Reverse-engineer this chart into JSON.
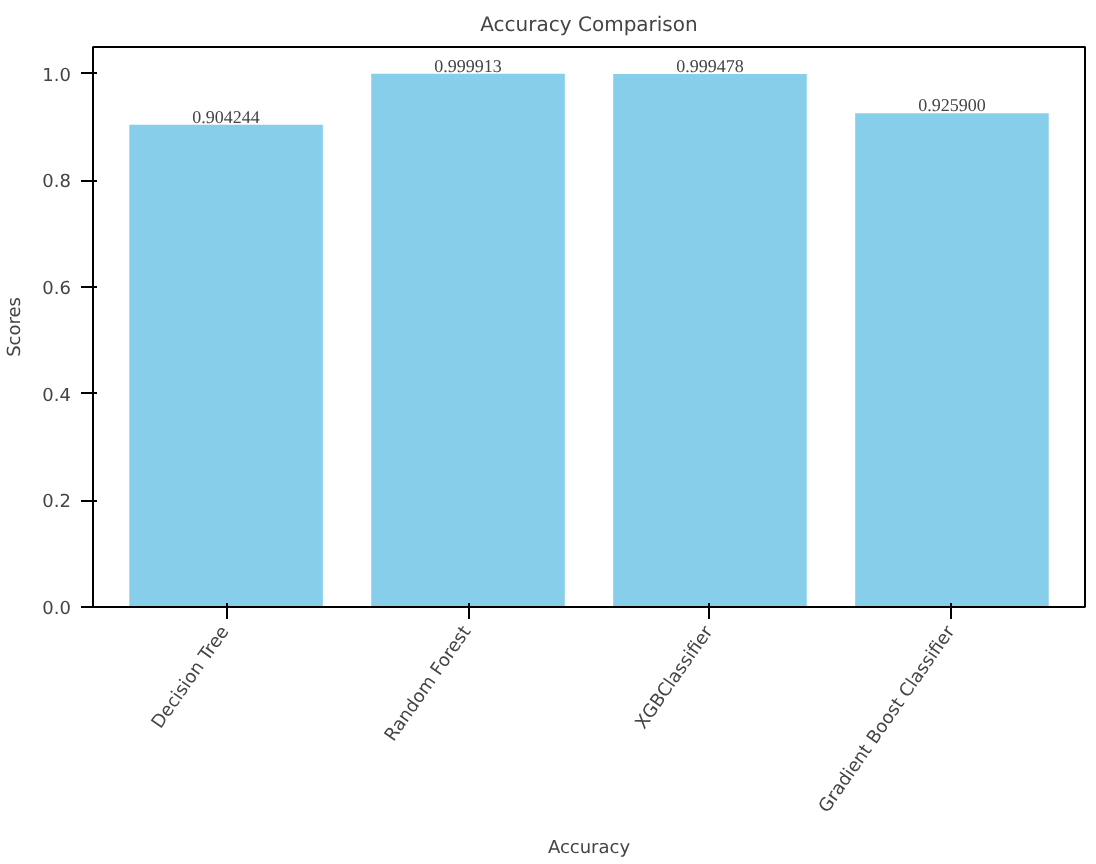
{
  "chart_data": {
    "type": "bar",
    "title": "Accuracy Comparison",
    "xlabel": "Accuracy",
    "ylabel": "Scores",
    "categories": [
      "Decision Tree",
      "Random Forest",
      "XGBClassifier",
      "Gradient Boost Classifier"
    ],
    "values": [
      0.904244,
      0.999913,
      0.999478,
      0.9259
    ],
    "value_labels": [
      "0.904244",
      "0.999913",
      "0.999478",
      "0.925900"
    ],
    "color": "#87ceeb",
    "ylim": [
      0,
      1.05
    ],
    "yticks": [
      {
        "value": 0,
        "label": "0.0"
      },
      {
        "value": 0.2,
        "label": "0.2"
      },
      {
        "value": 0.4,
        "label": "0.4"
      },
      {
        "value": 0.6,
        "label": "0.6"
      },
      {
        "value": 0.8,
        "label": "0.8"
      },
      {
        "value": 1.0,
        "label": "1.0"
      }
    ],
    "grid": false
  }
}
